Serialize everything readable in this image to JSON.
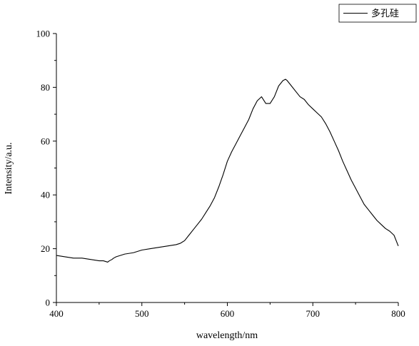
{
  "chart_data": {
    "type": "line",
    "title": "",
    "xlabel": "wavelength/nm",
    "ylabel": "Intensity/a.u.",
    "xlim": [
      400,
      800
    ],
    "ylim": [
      0,
      100
    ],
    "xticks": [
      400,
      500,
      600,
      700,
      800
    ],
    "yticks": [
      0,
      20,
      40,
      60,
      80,
      100
    ],
    "x_minor_step": 50,
    "y_minor_step": 10,
    "grid": false,
    "legend": "top-right",
    "series": [
      {
        "name": "多孔硅",
        "color": "#000000",
        "x": [
          400,
          410,
          420,
          430,
          440,
          450,
          455,
          460,
          462,
          465,
          467,
          470,
          480,
          490,
          500,
          510,
          520,
          530,
          540,
          545,
          550,
          555,
          560,
          565,
          570,
          575,
          580,
          585,
          590,
          595,
          600,
          605,
          610,
          615,
          620,
          625,
          630,
          635,
          640,
          645,
          650,
          655,
          660,
          665,
          668,
          670,
          675,
          680,
          685,
          690,
          695,
          700,
          705,
          710,
          715,
          720,
          725,
          730,
          735,
          740,
          745,
          750,
          755,
          760,
          765,
          770,
          775,
          780,
          785,
          790,
          795,
          800
        ],
        "y": [
          17.5,
          17.0,
          16.5,
          16.5,
          16.0,
          15.5,
          15.5,
          15.0,
          15.5,
          16.0,
          16.5,
          17.0,
          18.0,
          18.5,
          19.5,
          20.0,
          20.5,
          21.0,
          21.5,
          22.0,
          23.0,
          25.0,
          27.0,
          29.0,
          31.0,
          33.5,
          36.0,
          39.0,
          43.0,
          47.5,
          52.5,
          56.0,
          59.0,
          62.0,
          65.0,
          68.0,
          72.0,
          75.0,
          76.5,
          74.0,
          74.0,
          76.5,
          80.5,
          82.5,
          83.0,
          82.5,
          80.5,
          78.5,
          76.5,
          75.5,
          73.5,
          72.0,
          70.5,
          69.0,
          66.5,
          63.5,
          60.0,
          56.5,
          52.5,
          49.0,
          45.5,
          42.5,
          39.5,
          36.5,
          34.5,
          32.5,
          30.5,
          29.0,
          27.5,
          26.5,
          25.0,
          21.0
        ]
      }
    ]
  }
}
